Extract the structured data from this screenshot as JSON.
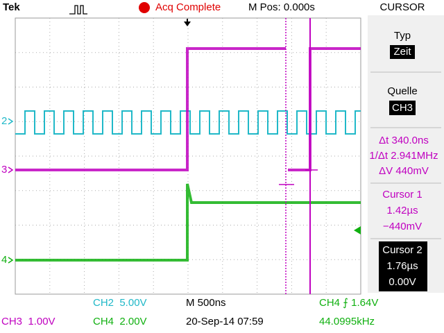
{
  "header": {
    "brand": "Tek",
    "status": "Acq Complete",
    "position": "M Pos: 0.000s",
    "menu": "CURSOR"
  },
  "channel_markers": {
    "ch2": "2",
    "ch3": "3",
    "ch4": "4"
  },
  "cursor_panel": {
    "type_label": "Typ",
    "type_value": "Zeit",
    "source_label": "Quelle",
    "source_value": "CH3",
    "delta_t": "Δt 340.0ns",
    "inverse_delta_t": "1/Δt 2.941MHz",
    "delta_v": "ΔV 440mV",
    "cursor1_title": "Cursor 1",
    "cursor1_time": "1.42µs",
    "cursor1_voltage": "−440mV",
    "cursor2_title": "Cursor 2",
    "cursor2_time": "1.76µs",
    "cursor2_voltage": "0.00V"
  },
  "footer": {
    "ch2_scale": "CH2  5.00V",
    "timebase": "M 500ns",
    "trigger": "CH4 ⨍ 1.64V",
    "ch3_scale": "CH3  1.00V",
    "ch4_scale": "CH4  2.00V",
    "datetime": "20-Sep-14 07:59",
    "frequency": "44.0995kHz"
  }
}
